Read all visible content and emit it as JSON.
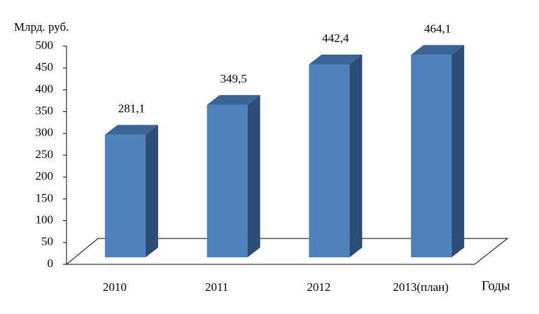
{
  "chart_data": {
    "type": "bar3d",
    "y_label": "Млрд. руб.",
    "x_label": "Годы",
    "categories": [
      "2010",
      "2011",
      "2012",
      "2013(план)"
    ],
    "values": [
      281.1,
      349.5,
      442.4,
      464.1
    ],
    "value_labels": [
      "281,1",
      "349,5",
      "442,4",
      "464,1"
    ],
    "color": "#4f81bd",
    "ylim": [
      0,
      500
    ],
    "yticks": [
      0,
      50,
      100,
      150,
      200,
      250,
      300,
      350,
      400,
      450,
      500
    ]
  }
}
